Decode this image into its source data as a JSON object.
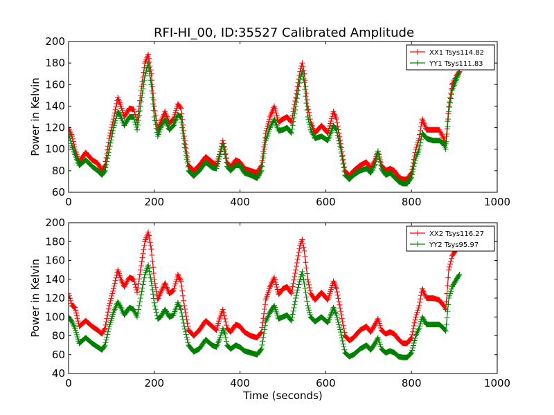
{
  "figure": {
    "title": "RFI-HI_00, ID:35527 Calibrated Amplitude"
  },
  "chart_data": [
    {
      "type": "line",
      "marker": "+",
      "ylabel": "Power in Kelvin",
      "xlabel": "",
      "xlim": [
        0,
        1000
      ],
      "ylim": [
        60,
        200
      ],
      "xticks": [
        0,
        200,
        400,
        600,
        800,
        1000
      ],
      "yticks": [
        60,
        80,
        100,
        120,
        140,
        160,
        180,
        200
      ],
      "grid": false,
      "legend_position": "top-right",
      "series": [
        {
          "name": "XX1 Tsys114.82",
          "color": "#ff0000",
          "x": [
            0,
            8,
            15,
            25,
            40,
            55,
            68,
            78,
            85,
            95,
            105,
            115,
            122,
            130,
            142,
            152,
            160,
            168,
            178,
            186,
            193,
            200,
            208,
            215,
            225,
            235,
            245,
            255,
            262,
            270,
            280,
            292,
            305,
            320,
            335,
            345,
            352,
            360,
            365,
            370,
            378,
            390,
            400,
            410,
            425,
            440,
            450,
            460,
            470,
            480,
            490,
            500,
            510,
            520,
            530,
            540,
            545,
            550,
            558,
            565,
            575,
            590,
            605,
            618,
            625,
            635,
            645,
            655,
            665,
            680,
            695,
            705,
            715,
            722,
            730,
            740,
            750,
            760,
            770,
            780,
            790,
            800,
            810,
            818,
            825,
            835,
            850,
            865,
            875,
            880,
            887,
            895,
            905,
            912
          ],
          "y": [
            120,
            112,
            100,
            88,
            97,
            90,
            87,
            80,
            85,
            110,
            128,
            148,
            140,
            130,
            138,
            137,
            125,
            150,
            180,
            188,
            170,
            140,
            118,
            125,
            135,
            124,
            128,
            142,
            138,
            112,
            85,
            80,
            85,
            93,
            88,
            85,
            95,
            108,
            100,
            88,
            83,
            90,
            88,
            82,
            80,
            78,
            85,
            115,
            130,
            140,
            125,
            128,
            130,
            125,
            148,
            172,
            180,
            170,
            140,
            125,
            115,
            122,
            115,
            135,
            128,
            105,
            80,
            75,
            80,
            85,
            88,
            82,
            90,
            98,
            85,
            80,
            82,
            80,
            74,
            72,
            72,
            78,
            100,
            110,
            128,
            118,
            118,
            118,
            110,
            105,
            140,
            160,
            168,
            172
          ]
        },
        {
          "name": "YY1 Tsys111.83",
          "color": "#008000",
          "x": [
            0,
            8,
            15,
            25,
            40,
            55,
            68,
            78,
            85,
            95,
            105,
            115,
            122,
            130,
            142,
            152,
            160,
            168,
            178,
            186,
            193,
            200,
            208,
            215,
            225,
            235,
            245,
            255,
            262,
            270,
            280,
            292,
            305,
            320,
            335,
            345,
            352,
            360,
            365,
            370,
            378,
            390,
            400,
            410,
            425,
            440,
            450,
            460,
            470,
            480,
            490,
            500,
            510,
            520,
            530,
            540,
            545,
            550,
            558,
            565,
            575,
            590,
            605,
            618,
            625,
            635,
            645,
            655,
            665,
            680,
            695,
            705,
            715,
            722,
            730,
            740,
            750,
            760,
            770,
            780,
            790,
            800,
            810,
            818,
            825,
            835,
            850,
            865,
            875,
            880,
            887,
            895,
            905,
            912
          ],
          "y": [
            115,
            103,
            95,
            85,
            90,
            84,
            80,
            76,
            80,
            100,
            120,
            135,
            130,
            122,
            130,
            130,
            118,
            140,
            168,
            180,
            160,
            130,
            112,
            120,
            128,
            118,
            122,
            132,
            130,
            105,
            80,
            75,
            80,
            88,
            83,
            82,
            93,
            105,
            95,
            84,
            80,
            85,
            85,
            78,
            76,
            73,
            80,
            108,
            120,
            128,
            117,
            118,
            120,
            115,
            140,
            165,
            172,
            162,
            130,
            118,
            110,
            112,
            108,
            122,
            118,
            100,
            76,
            72,
            76,
            80,
            82,
            78,
            86,
            98,
            82,
            76,
            78,
            74,
            70,
            68,
            68,
            74,
            92,
            100,
            115,
            110,
            108,
            108,
            105,
            100,
            135,
            155,
            165,
            172
          ]
        }
      ]
    },
    {
      "type": "line",
      "marker": "+",
      "ylabel": "Power in Kelvin",
      "xlabel": "Time (seconds)",
      "xlim": [
        0,
        1000
      ],
      "ylim": [
        40,
        200
      ],
      "xticks": [
        0,
        200,
        400,
        600,
        800,
        1000
      ],
      "yticks": [
        40,
        60,
        80,
        100,
        120,
        140,
        160,
        180,
        200
      ],
      "grid": false,
      "legend_position": "top-right",
      "series": [
        {
          "name": "XX2 Tsys116.27",
          "color": "#ff0000",
          "x": [
            0,
            8,
            15,
            25,
            40,
            55,
            68,
            78,
            85,
            95,
            105,
            115,
            122,
            130,
            142,
            152,
            160,
            168,
            178,
            186,
            193,
            200,
            208,
            215,
            225,
            235,
            245,
            255,
            262,
            270,
            280,
            292,
            305,
            320,
            335,
            345,
            352,
            360,
            365,
            370,
            378,
            390,
            400,
            410,
            425,
            440,
            450,
            460,
            470,
            480,
            490,
            500,
            510,
            520,
            530,
            540,
            545,
            550,
            558,
            565,
            575,
            590,
            605,
            618,
            625,
            635,
            645,
            655,
            665,
            680,
            695,
            705,
            715,
            722,
            730,
            740,
            750,
            760,
            770,
            780,
            790,
            800,
            810,
            818,
            825,
            835,
            850,
            865,
            875,
            880,
            887,
            895,
            905,
            912
          ],
          "y": [
            125,
            112,
            110,
            90,
            96,
            90,
            86,
            82,
            88,
            112,
            130,
            150,
            140,
            132,
            142,
            140,
            126,
            150,
            180,
            190,
            172,
            140,
            118,
            126,
            136,
            125,
            128,
            145,
            138,
            112,
            86,
            80,
            86,
            96,
            90,
            86,
            98,
            108,
            98,
            88,
            84,
            92,
            90,
            84,
            80,
            78,
            84,
            118,
            132,
            142,
            124,
            130,
            132,
            125,
            150,
            176,
            182,
            170,
            140,
            125,
            118,
            126,
            118,
            138,
            130,
            106,
            80,
            75,
            78,
            86,
            90,
            84,
            92,
            98,
            86,
            82,
            84,
            82,
            76,
            72,
            72,
            78,
            100,
            112,
            130,
            120,
            120,
            118,
            112,
            108,
            150,
            165,
            172,
            178
          ]
        },
        {
          "name": "YY2 Tsys95.97",
          "color": "#008000",
          "x": [
            0,
            8,
            15,
            25,
            40,
            55,
            68,
            78,
            85,
            95,
            105,
            115,
            122,
            130,
            142,
            152,
            160,
            168,
            178,
            186,
            193,
            200,
            208,
            215,
            225,
            235,
            245,
            255,
            262,
            270,
            280,
            292,
            305,
            320,
            335,
            345,
            352,
            360,
            365,
            370,
            378,
            390,
            400,
            410,
            425,
            440,
            450,
            460,
            470,
            480,
            490,
            500,
            510,
            520,
            530,
            540,
            545,
            550,
            558,
            565,
            575,
            590,
            605,
            618,
            625,
            635,
            645,
            655,
            665,
            680,
            695,
            705,
            715,
            722,
            730,
            740,
            750,
            760,
            770,
            780,
            790,
            800,
            810,
            818,
            825,
            835,
            850,
            865,
            875,
            880,
            887,
            895,
            905,
            912
          ],
          "y": [
            100,
            95,
            88,
            72,
            78,
            72,
            68,
            65,
            70,
            90,
            105,
            116,
            110,
            102,
            110,
            108,
            100,
            120,
            145,
            155,
            138,
            115,
            98,
            100,
            108,
            100,
            102,
            115,
            108,
            90,
            70,
            63,
            66,
            76,
            70,
            68,
            76,
            88,
            82,
            70,
            66,
            70,
            68,
            64,
            62,
            60,
            66,
            95,
            105,
            112,
            98,
            100,
            102,
            96,
            120,
            140,
            148,
            135,
            112,
            100,
            95,
            100,
            94,
            110,
            102,
            84,
            62,
            58,
            60,
            66,
            70,
            65,
            72,
            78,
            66,
            62,
            64,
            62,
            58,
            57,
            57,
            62,
            80,
            88,
            100,
            92,
            92,
            92,
            88,
            85,
            120,
            132,
            140,
            145
          ]
        }
      ]
    }
  ]
}
